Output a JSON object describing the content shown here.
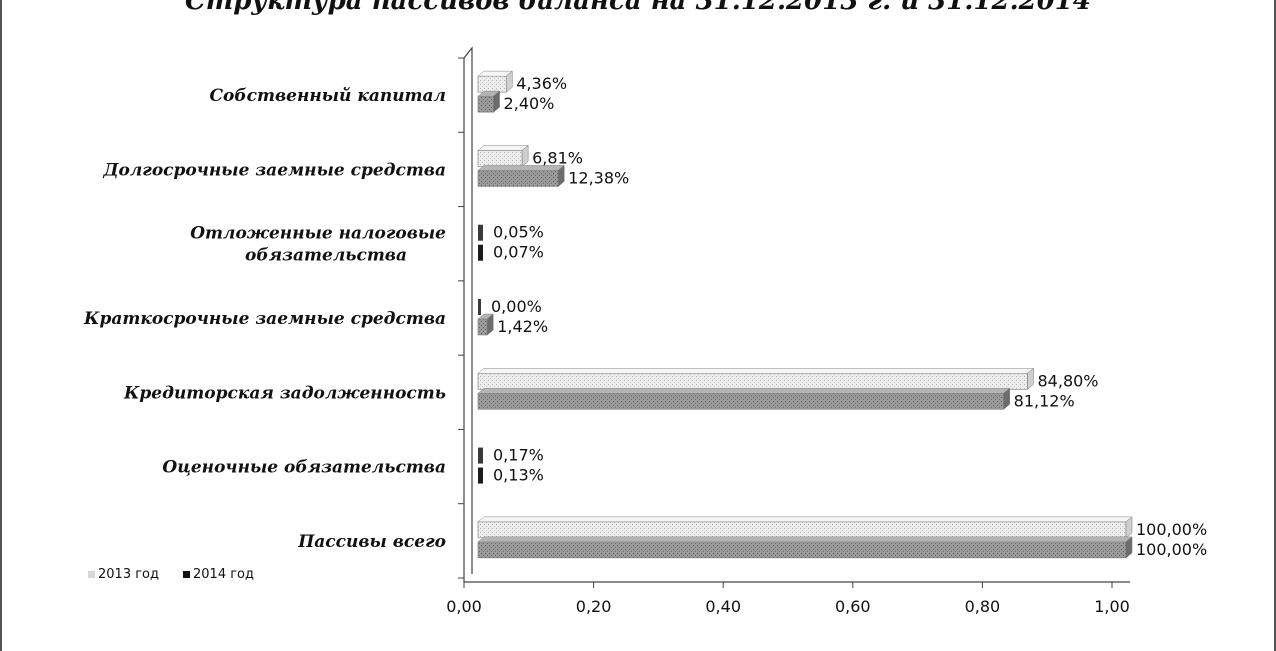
{
  "chart_data": {
    "type": "bar",
    "orientation": "horizontal",
    "title": "Структура пассивов баланса на 31.12.2013 г. и 31.12.2014",
    "categories": [
      "Собственный капитал",
      "Долгосрочные заемные средства",
      "Отложенные налоговые обязательства",
      "Краткосрочные заемные средства",
      "Кредиторская задолженность",
      "Оценочные обязательства",
      "Пассивы всего"
    ],
    "category_lines": [
      [
        "Собственный капитал"
      ],
      [
        "Долгосрочные заемные средства"
      ],
      [
        "Отложенные налоговые",
        "обязательства"
      ],
      [
        "Краткосрочные заемные средства"
      ],
      [
        "Кредиторская задолженность"
      ],
      [
        "Оценочные обязательства"
      ],
      [
        "Пассивы всего"
      ]
    ],
    "series": [
      {
        "name": "2013 год",
        "color": "#e4e4e4",
        "values": [
          0.0436,
          0.0681,
          0.0005,
          0.0,
          0.848,
          0.0017,
          1.0
        ],
        "labels": [
          "4,36%",
          "6,81%",
          "0,05%",
          "0,00%",
          "84,80%",
          "0,17%",
          "100,00%"
        ]
      },
      {
        "name": "2014 год",
        "color": "#8a8a8a",
        "values": [
          0.024,
          0.1238,
          0.0007,
          0.0142,
          0.8112,
          0.0013,
          1.0
        ],
        "labels": [
          "2,40%",
          "12,38%",
          "0,07%",
          "1,42%",
          "81,12%",
          "0,13%",
          "100,00%"
        ]
      }
    ],
    "xlim": [
      0,
      1
    ],
    "xticks": [
      "0,00",
      "0,20",
      "0,40",
      "0,60",
      "0,80",
      "1,00"
    ],
    "grid": false,
    "legend_position": "bottom-left"
  }
}
